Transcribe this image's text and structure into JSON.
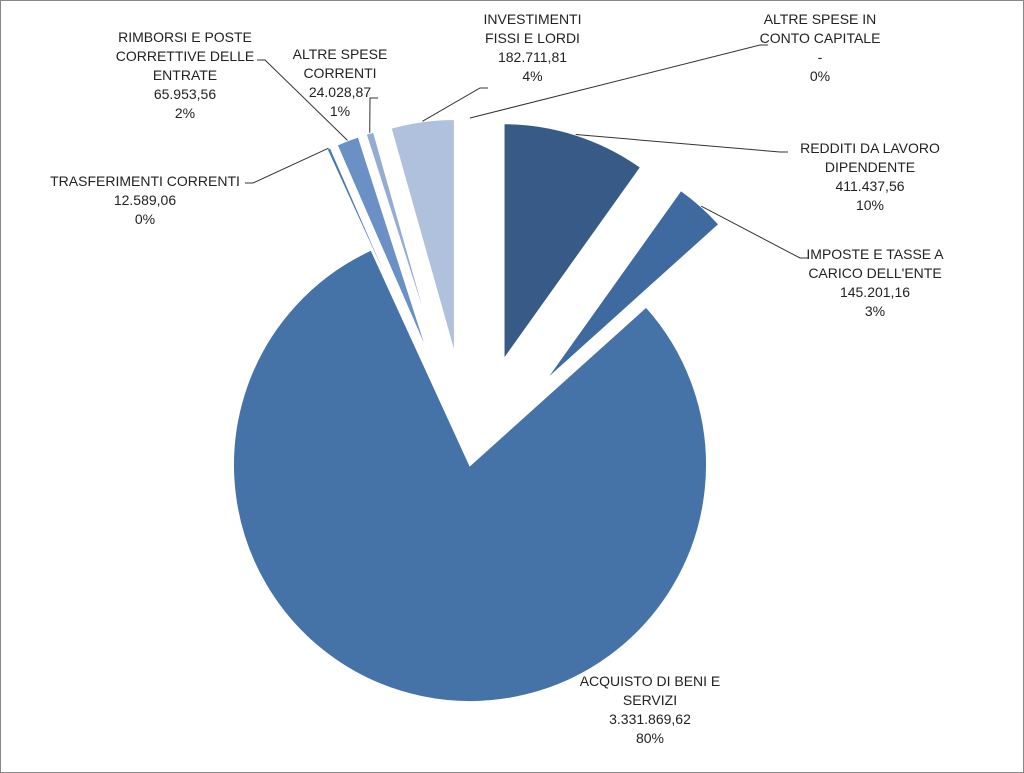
{
  "chart_data": {
    "type": "pie",
    "categories": [
      "REDDITI DA LAVORO DIPENDENTE",
      "IMPOSTE E TASSE A CARICO DELL'ENTE",
      "ACQUISTO DI BENI E SERVIZI",
      "TRASFERIMENTI CORRENTI",
      "RIMBORSI E POSTE CORRETTIVE DELLE ENTRATE",
      "ALTRE SPESE CORRENTI",
      "INVESTIMENTI FISSI E LORDI",
      "ALTRE SPESE IN CONTO CAPITALE"
    ],
    "values": [
      411437.56,
      145201.16,
      3331869.62,
      12589.06,
      65953.56,
      24028.87,
      182711.81,
      0
    ],
    "value_labels": [
      "411.437,56",
      "145.201,16",
      "3.331.869,62",
      "12.589,06",
      "65.953,56",
      "24.028,87",
      "182.711,81",
      "-"
    ],
    "percents": [
      10,
      3,
      80,
      0,
      2,
      1,
      4,
      0
    ],
    "percent_labels": [
      "10%",
      "3%",
      "80%",
      "0%",
      "2%",
      "1%",
      "4%",
      "0%"
    ],
    "colors": [
      "#375a87",
      "#3f6aa0",
      "#4573a8",
      "#4a78b4",
      "#6a90c6",
      "#94acd2",
      "#b0c1de",
      "#cbd5e9"
    ]
  }
}
